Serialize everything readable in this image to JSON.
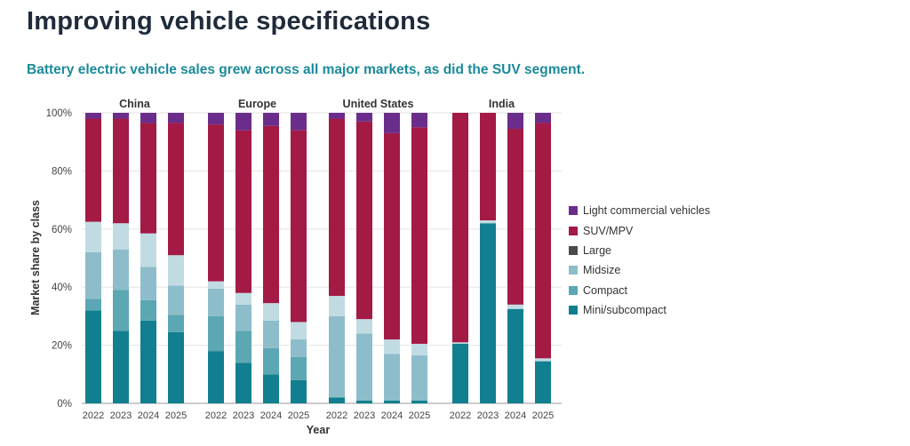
{
  "title": "Improving vehicle specifications",
  "subtitle": "Battery electric vehicle sales grew across all major markets, as did the SUV segment.",
  "colors": {
    "Mini/subcompact": "#117f8f",
    "Compact": "#5ba7b3",
    "Midsize": "#8dbdca",
    "Large": "#4a4a4a",
    "SUV/MPV": "#a31a45",
    "Light commercial vehicles": "#6b2d8c",
    "Gap": "#c1dbe3"
  },
  "chart_data": {
    "type": "bar",
    "stacked": true,
    "xlabel": "Year",
    "ylabel": "Market share by class",
    "ylim": [
      0,
      100
    ],
    "yticks": [
      "0%",
      "20%",
      "40%",
      "60%",
      "80%",
      "100%"
    ],
    "legend_position": "right",
    "series_order": [
      "Mini/subcompact",
      "Compact",
      "Midsize",
      "Large",
      "Gap",
      "SUV/MPV",
      "Light commercial vehicles"
    ],
    "legend": [
      "Light commercial vehicles",
      "SUV/MPV",
      "Large",
      "Midsize",
      "Compact",
      "Mini/subcompact"
    ],
    "groups": [
      {
        "name": "China",
        "bars": [
          {
            "year": "2022",
            "values": [
              32,
              4,
              16,
              0,
              10.5,
              35.5,
              2
            ]
          },
          {
            "year": "2023",
            "values": [
              25,
              14,
              14,
              0,
              9,
              36,
              2
            ]
          },
          {
            "year": "2024",
            "values": [
              28.5,
              7,
              11.5,
              0,
              11.5,
              38,
              3.5
            ]
          },
          {
            "year": "2025",
            "values": [
              24.5,
              6,
              10,
              0,
              10.5,
              45.5,
              3.5
            ]
          }
        ]
      },
      {
        "name": "Europe",
        "bars": [
          {
            "year": "2022",
            "values": [
              18,
              12,
              9.5,
              0,
              2.5,
              54,
              4
            ]
          },
          {
            "year": "2023",
            "values": [
              14,
              11,
              9,
              0,
              4,
              56,
              6
            ]
          },
          {
            "year": "2024",
            "values": [
              10,
              9,
              9.5,
              0,
              6,
              61,
              4.5
            ]
          },
          {
            "year": "2025",
            "values": [
              8,
              8,
              6,
              0,
              6,
              66,
              6
            ]
          }
        ]
      },
      {
        "name": "United States",
        "bars": [
          {
            "year": "2022",
            "values": [
              2,
              0,
              28,
              0,
              7,
              61,
              2
            ]
          },
          {
            "year": "2023",
            "values": [
              1,
              0,
              23,
              0,
              5,
              68,
              3
            ]
          },
          {
            "year": "2024",
            "values": [
              1,
              0,
              16,
              0,
              5,
              71,
              7
            ]
          },
          {
            "year": "2025",
            "values": [
              1,
              0,
              15.5,
              0,
              4,
              74.5,
              5
            ]
          }
        ]
      },
      {
        "name": "India",
        "bars": [
          {
            "year": "2022",
            "values": [
              20.5,
              0,
              0,
              0,
              0.5,
              79,
              0
            ]
          },
          {
            "year": "2023",
            "values": [
              62,
              0,
              0,
              0,
              1,
              37,
              0
            ]
          },
          {
            "year": "2024",
            "values": [
              32.5,
              0,
              0,
              0,
              1.5,
              60.5,
              5.5
            ]
          },
          {
            "year": "2025",
            "values": [
              14.5,
              0,
              0,
              0,
              1,
              81,
              3.5
            ]
          }
        ]
      }
    ]
  }
}
